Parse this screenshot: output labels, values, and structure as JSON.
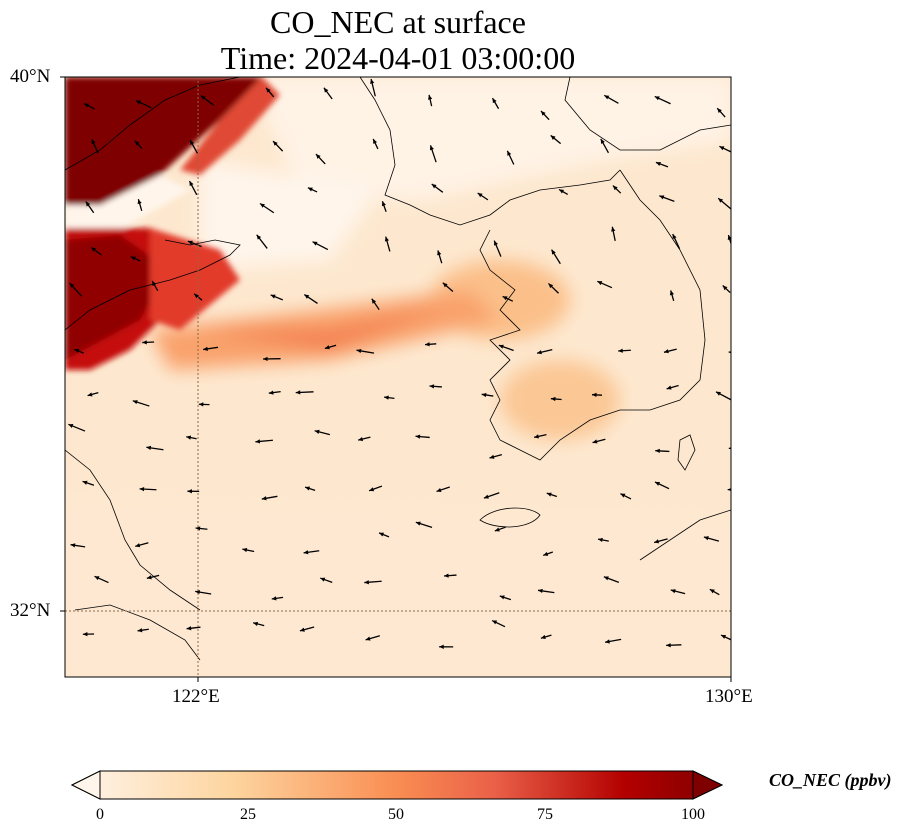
{
  "title": {
    "line1": "CO_NEC at surface",
    "line2": "Time: 2024-04-01 03:00:00"
  },
  "axes": {
    "lat_ticks": [
      "40°N",
      "32°N"
    ],
    "lon_ticks": [
      "122°E",
      "130°E"
    ],
    "extent": {
      "lon_min": 120,
      "lon_max": 130,
      "lat_min": 31,
      "lat_max": 40
    }
  },
  "colorbar": {
    "label": "CO_NEC (ppbv)",
    "ticks": [
      "0",
      "25",
      "50",
      "75",
      "100"
    ],
    "range": [
      0,
      100
    ],
    "extend": "both",
    "colors": [
      "#fff5eb",
      "#fdd49e",
      "#f98d52",
      "#e5533b",
      "#b30000",
      "#7f0000"
    ]
  }
}
